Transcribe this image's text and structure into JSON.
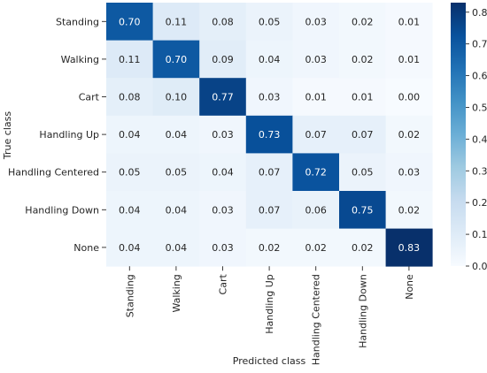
{
  "chart_data": {
    "type": "heatmap",
    "title": "",
    "xlabel": "Predicted class",
    "ylabel": "True class",
    "row_labels": [
      "Standing",
      "Walking",
      "Cart",
      "Handling Up",
      "Handling Centered",
      "Handling Down",
      "None"
    ],
    "col_labels": [
      "Standing",
      "Walking",
      "Cart",
      "Handling Up",
      "Handling Centered",
      "Handling Down",
      "None"
    ],
    "values": [
      [
        0.7,
        0.11,
        0.08,
        0.05,
        0.03,
        0.02,
        0.01
      ],
      [
        0.11,
        0.7,
        0.09,
        0.04,
        0.03,
        0.02,
        0.01
      ],
      [
        0.08,
        0.1,
        0.77,
        0.03,
        0.01,
        0.01,
        0.0
      ],
      [
        0.04,
        0.04,
        0.03,
        0.73,
        0.07,
        0.07,
        0.02
      ],
      [
        0.05,
        0.05,
        0.04,
        0.07,
        0.72,
        0.05,
        0.03
      ],
      [
        0.04,
        0.04,
        0.03,
        0.07,
        0.06,
        0.75,
        0.02
      ],
      [
        0.04,
        0.04,
        0.03,
        0.02,
        0.02,
        0.02,
        0.83
      ]
    ],
    "value_range": [
      0.0,
      0.83
    ],
    "colormap": "Blues",
    "colorbar_ticks": [
      "0.0",
      "0.1",
      "0.2",
      "0.3",
      "0.4",
      "0.5",
      "0.6",
      "0.7",
      "0.8"
    ],
    "colors": {
      "low": "#f7fbff",
      "high": "#08306b",
      "dark_text": "#262626",
      "light_text": "#ffffff"
    }
  }
}
